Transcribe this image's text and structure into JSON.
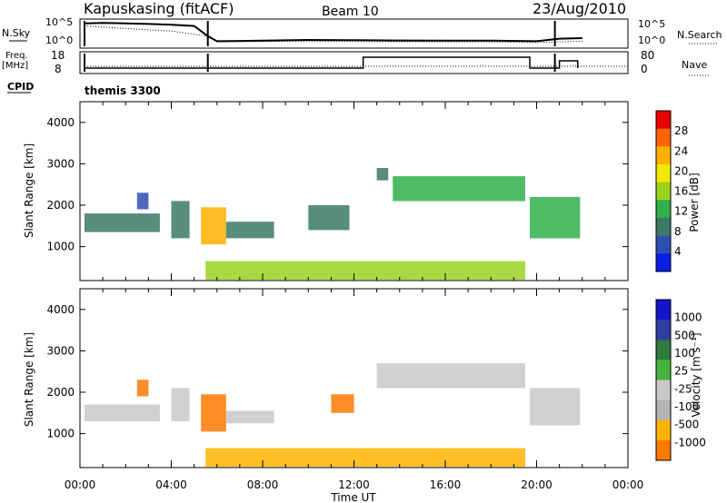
{
  "header": {
    "station": "Kapuskasing (fitACF)",
    "beam": "Beam 10",
    "date": "23/Aug/2010"
  },
  "side_labels": {
    "nsky": "N.Sky",
    "freq": "Freq.",
    "freq_unit": "[MHz]",
    "cpid": "CPID",
    "nsearch": "N.Search",
    "nave": "Nave"
  },
  "cpid_value": "themis 3300",
  "colors": {
    "power": [
      "#0a1ee6",
      "#2f4fb0",
      "#3b7a63",
      "#2fb04a",
      "#9ad21e",
      "#f2e800",
      "#ffb000",
      "#ff6400",
      "#e60000"
    ],
    "velocity": [
      "#1414c8",
      "#2f3fa0",
      "#2f7a40",
      "#46b43c",
      "#c8c8c8",
      "#b4b4b4",
      "#ffb400",
      "#ff7800",
      "#ff2800",
      "#dc0000"
    ]
  },
  "chart_data": [
    {
      "type": "line",
      "name": "status-nsky",
      "xlim": [
        0,
        24
      ],
      "ylabel_ticks_left": [
        "10^5",
        "10^0"
      ],
      "ylabel_ticks_right": [
        "10^5",
        "10^0"
      ],
      "series_nsky": {
        "x": [
          0.2,
          1,
          2,
          3,
          4,
          5,
          5.6,
          6,
          8,
          10,
          12,
          14,
          16,
          18,
          20,
          21,
          22
        ],
        "y": [
          0.9,
          0.92,
          0.9,
          0.88,
          0.85,
          0.8,
          0.4,
          0.2,
          0.22,
          0.25,
          0.24,
          0.23,
          0.22,
          0.22,
          0.2,
          0.3,
          0.32
        ]
      },
      "series_nsearch": {
        "x": [
          0.2,
          2,
          4,
          5.6,
          6,
          10,
          14,
          18,
          20,
          22
        ],
        "y": [
          0.8,
          0.7,
          0.6,
          0.4,
          0.18,
          0.2,
          0.18,
          0.17,
          0.15,
          0.2
        ]
      }
    },
    {
      "type": "line",
      "name": "status-freq",
      "xlim": [
        0,
        24
      ],
      "ylabel_ticks_left": [
        "18",
        "8"
      ],
      "ylabel_ticks_right": [
        "80",
        "0"
      ],
      "series_freq": {
        "x": [
          0.2,
          5.5,
          12.3,
          12.4,
          19.6,
          19.7,
          20.8,
          21.0,
          21.8
        ],
        "y": [
          10,
          10,
          10,
          16,
          16,
          10,
          10,
          14,
          10
        ]
      },
      "series_nave": {
        "x": [
          0.2,
          24
        ],
        "y": [
          0.3,
          0.3
        ]
      }
    },
    {
      "type": "heatmap",
      "name": "power",
      "x": [
        0,
        4,
        8,
        12,
        16,
        20,
        24
      ],
      "xticklabels": [
        "00:00",
        "04:00",
        "08:00",
        "12:00",
        "16:00",
        "20:00",
        "00:00"
      ],
      "xlim": [
        0,
        24
      ],
      "ylim": [
        180,
        4500
      ],
      "yticks": [
        1000,
        2000,
        3000,
        4000
      ],
      "ylabel": "Slant Range [km]",
      "colorbar_ticks": [
        "4",
        "8",
        "12",
        "16",
        "20",
        "24",
        "28"
      ],
      "colorbar_label": "Power [dB]",
      "regions": [
        {
          "t0": 0.2,
          "t1": 3.5,
          "r0": 1350,
          "r1": 1800,
          "v": 8
        },
        {
          "t0": 2.5,
          "t1": 3.0,
          "r0": 1900,
          "r1": 2300,
          "v": 6
        },
        {
          "t0": 4.0,
          "t1": 4.8,
          "r0": 1200,
          "r1": 2100,
          "v": 10
        },
        {
          "t0": 5.3,
          "t1": 6.4,
          "r0": 1050,
          "r1": 1950,
          "v": 22
        },
        {
          "t0": 6.4,
          "t1": 8.5,
          "r0": 1200,
          "r1": 1600,
          "v": 8
        },
        {
          "t0": 10.0,
          "t1": 11.8,
          "r0": 1400,
          "r1": 2000,
          "v": 9
        },
        {
          "t0": 13.0,
          "t1": 13.5,
          "r0": 2600,
          "r1": 2900,
          "v": 8
        },
        {
          "t0": 13.7,
          "t1": 19.5,
          "r0": 2100,
          "r1": 2700,
          "v": 12
        },
        {
          "t0": 19.7,
          "t1": 21.9,
          "r0": 1200,
          "r1": 2200,
          "v": 12
        },
        {
          "t0": 5.5,
          "t1": 19.5,
          "r0": 200,
          "r1": 650,
          "v": 16
        }
      ]
    },
    {
      "type": "heatmap",
      "name": "velocity",
      "xlim": [
        0,
        24
      ],
      "ylim": [
        180,
        4500
      ],
      "yticks": [
        1000,
        2000,
        3000,
        4000
      ],
      "ylabel": "Slant Range [km]",
      "xlabel": "Time UT",
      "xticklabels": [
        "00:00",
        "04:00",
        "08:00",
        "12:00",
        "16:00",
        "20:00",
        "00:00"
      ],
      "colorbar_ticks": [
        "1000",
        "500",
        "100",
        "25",
        "-25",
        "-100",
        "-500",
        "-1000"
      ],
      "colorbar_label": "Velocity  [m s⁻¹]",
      "regions": [
        {
          "t0": 0.2,
          "t1": 3.5,
          "r0": 1300,
          "r1": 1700,
          "v": 0
        },
        {
          "t0": 2.5,
          "t1": 3.0,
          "r0": 1900,
          "r1": 2300,
          "v": -150
        },
        {
          "t0": 4.0,
          "t1": 4.8,
          "r0": 1300,
          "r1": 2100,
          "v": 0
        },
        {
          "t0": 5.3,
          "t1": 6.4,
          "r0": 1050,
          "r1": 1950,
          "v": -150
        },
        {
          "t0": 6.4,
          "t1": 8.5,
          "r0": 1250,
          "r1": 1550,
          "v": 0
        },
        {
          "t0": 11.0,
          "t1": 12.0,
          "r0": 1500,
          "r1": 1950,
          "v": -200
        },
        {
          "t0": 13.0,
          "t1": 19.5,
          "r0": 2100,
          "r1": 2700,
          "v": 0
        },
        {
          "t0": 19.7,
          "t1": 21.9,
          "r0": 1200,
          "r1": 2100,
          "v": 0
        },
        {
          "t0": 5.5,
          "t1": 19.5,
          "r0": 200,
          "r1": 650,
          "v": -60
        }
      ]
    }
  ]
}
